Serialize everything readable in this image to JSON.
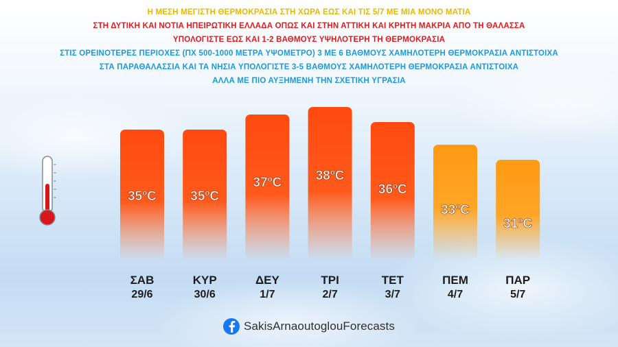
{
  "header": {
    "lines": [
      {
        "text": "Η ΜΕΣΗ ΜΕΓΙΣΤΗ ΘΕΡΜΟΚΡΑΣΙΑ ΣΤΗ ΧΩΡΑ ΕΩΣ ΚΑΙ ΤΙΣ 5/7 ΜΕ ΜΙΑ ΜΟΝΟ ΜΑΤΙΑ",
        "color": "#e8b800"
      },
      {
        "text": "ΣΤΗ ΔΥΤΙΚΗ ΚΑΙ ΝΟΤΙΑ ΗΠΕΙΡΩΤΙΚΗ ΕΛΛΑΔΑ ΟΠΩΣ ΚΑΙ ΣΤΗΝ ΑΤΤΙΚΗ ΚΑΙ ΚΡΗΤΗ ΜΑΚΡΙΑ ΑΠΟ ΤΗ ΘΑΛΑΣΣΑ",
        "color": "#e3191e"
      },
      {
        "text": "ΥΠΟΛΟΓΙΣΤΕ ΕΩΣ ΚΑΙ 1-2 ΒΑΘΜΟΥΣ ΥΨΗΛΟΤΕΡΗ ΤΗ ΘΕΡΜΟΚΡΑΣΙΑ",
        "color": "#e3191e"
      },
      {
        "text": "ΣΤΙΣ ΟΡΕΙΝΟΤΕΡΕΣ ΠΕΡΙΟΧΕΣ (ΠΧ 500-1000 ΜΕΤΡΑ ΥΨΟΜΕΤΡΟ) 3 ΜΕ 6 ΒΑΘΜΟΥΣ ΧΑΜΗΛΟΤΕΡΗ ΘΕΡΜΟΚΡΑΣΙΑ ΑΝΤΙΣΤΟΙΧΑ",
        "color": "#1a9ad9"
      },
      {
        "text": "ΣΤΑ ΠΑΡΑΘΑΛΑΣΣΙΑ ΚΑΙ ΤΑ ΝΗΣΙΑ ΥΠΟΛΟΓΙΣΤΕ 3-5 ΒΑΘΜΟΥΣ ΧΑΜΗΛΟΤΕΡΗ ΘΕΡΜΟΚΡΑΣΙΑ ΑΝΤΙΣΤΟΙΧΑ",
        "color": "#1a9ad9"
      },
      {
        "text": "ΑΛΛΑ ΜΕ ΠΙΟ ΑΥΞΗΜΕΝΗ ΤΗΝ ΣΧΕΤΙΚΗ ΥΓΡΑΣΙΑ",
        "color": "#1a9ad9"
      }
    ]
  },
  "chart_data": {
    "type": "bar",
    "categories": [
      "ΣΑΒ",
      "ΚΥΡ",
      "ΔΕΥ",
      "ΤΡΙ",
      "ΤΕΤ",
      "ΠΕΜ",
      "ΠΑΡ"
    ],
    "dates": [
      "29/6",
      "30/6",
      "1/7",
      "2/7",
      "3/7",
      "4/7",
      "5/7"
    ],
    "values": [
      35,
      35,
      37,
      38,
      36,
      33,
      31
    ],
    "labels": [
      "35ºC",
      "35ºC",
      "37ºC",
      "38ºC",
      "36ºC",
      "33ºC",
      "31ºC"
    ],
    "unit": "ºC",
    "colors": {
      "hot": "#ff4a0f",
      "warm": "#ff9a12",
      "threshold": 34
    },
    "grid": false,
    "legend": "none"
  },
  "footer": {
    "icon": "facebook-icon",
    "handle": "SakisArnaoutoglouForecasts"
  },
  "decor": {
    "icon": "thermometer-icon",
    "thermometer_color": "#d9161c"
  }
}
